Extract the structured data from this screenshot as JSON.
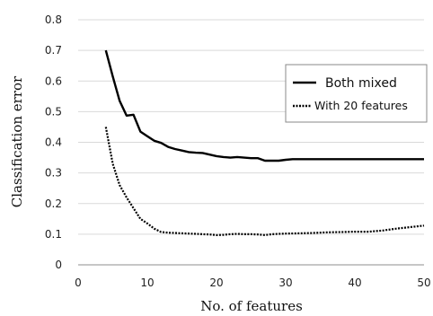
{
  "chart_data": {
    "type": "line",
    "title": "",
    "xlabel": "No. of features",
    "ylabel": "Classification error",
    "xlim": [
      0,
      50
    ],
    "ylim": [
      0,
      0.8
    ],
    "xticks": [
      "0",
      "10",
      "20",
      "30",
      "40",
      "50"
    ],
    "yticks": [
      "0",
      "0.1",
      "0.2",
      "0.3",
      "0.4",
      "0.5",
      "0.6",
      "0.7",
      "0.8"
    ],
    "grid": "horizontal",
    "legend_position": "right",
    "series": [
      {
        "name": "Both mixed",
        "style": "solid",
        "color": "#000000",
        "x": [
          4,
          5,
          6,
          7,
          8,
          9,
          10,
          11,
          12,
          13,
          14,
          15,
          16,
          17,
          18,
          19,
          20,
          21,
          22,
          23,
          24,
          25,
          26,
          27,
          28,
          29,
          30,
          31,
          32,
          34,
          36,
          38,
          40,
          42,
          44,
          46,
          48,
          50
        ],
        "y": [
          0.7,
          0.615,
          0.535,
          0.487,
          0.49,
          0.435,
          0.42,
          0.405,
          0.398,
          0.385,
          0.378,
          0.373,
          0.368,
          0.366,
          0.365,
          0.36,
          0.355,
          0.352,
          0.35,
          0.352,
          0.35,
          0.348,
          0.348,
          0.34,
          0.34,
          0.34,
          0.343,
          0.345,
          0.345,
          0.345,
          0.345,
          0.345,
          0.345,
          0.345,
          0.345,
          0.345,
          0.345,
          0.345
        ]
      },
      {
        "name": "With 20 features",
        "style": "dotted",
        "color": "#000000",
        "x": [
          4,
          5,
          6,
          7,
          8,
          9,
          10,
          11,
          12,
          13,
          14,
          15,
          16,
          17,
          18,
          19,
          20,
          21,
          22,
          23,
          24,
          25,
          26,
          27,
          28,
          29,
          30,
          32,
          34,
          36,
          38,
          40,
          42,
          44,
          46,
          48,
          50
        ],
        "y": [
          0.45,
          0.33,
          0.26,
          0.22,
          0.185,
          0.15,
          0.135,
          0.118,
          0.107,
          0.105,
          0.104,
          0.103,
          0.102,
          0.101,
          0.1,
          0.099,
          0.097,
          0.098,
          0.1,
          0.101,
          0.1,
          0.1,
          0.099,
          0.097,
          0.1,
          0.101,
          0.102,
          0.103,
          0.104,
          0.106,
          0.107,
          0.108,
          0.108,
          0.112,
          0.118,
          0.123,
          0.128
        ]
      }
    ]
  }
}
